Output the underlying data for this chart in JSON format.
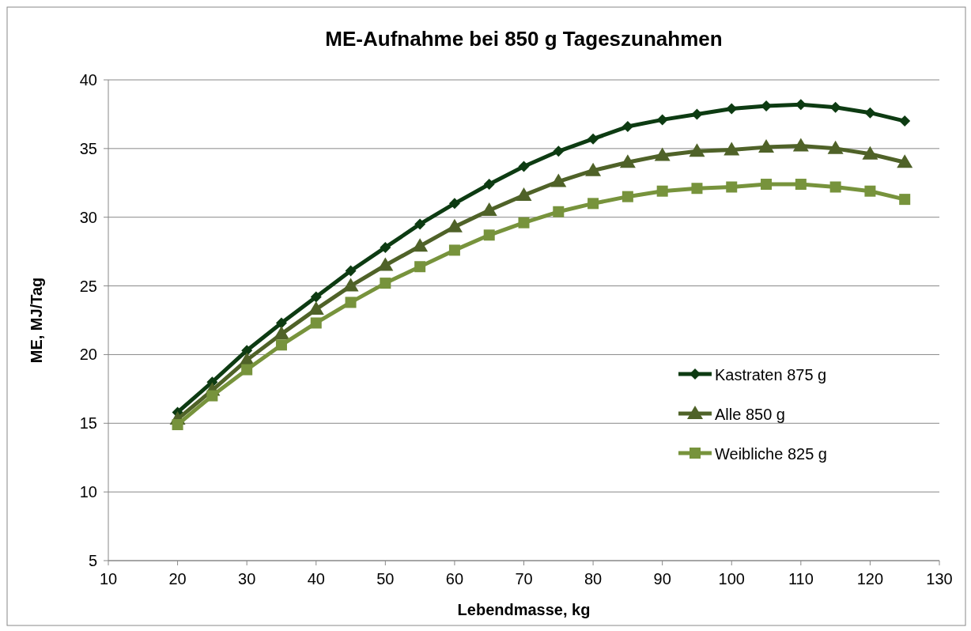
{
  "chart_data": {
    "type": "line",
    "title": "ME-Aufnahme bei 850 g Tageszunahmen",
    "xlabel": "Lebendmasse, kg",
    "ylabel": "ME, MJ/Tag",
    "x": [
      20,
      25,
      30,
      35,
      40,
      45,
      50,
      55,
      60,
      65,
      70,
      75,
      80,
      85,
      90,
      95,
      100,
      105,
      110,
      115,
      120,
      125
    ],
    "series": [
      {
        "name": "Kastraten  875 g",
        "color": "#0d3b12",
        "marker": "diamond",
        "values": [
          15.8,
          18.0,
          20.3,
          22.3,
          24.2,
          26.1,
          27.8,
          29.5,
          31.0,
          32.4,
          33.7,
          34.8,
          35.7,
          36.6,
          37.1,
          37.5,
          37.9,
          38.1,
          38.2,
          38.0,
          37.6,
          37.0
        ]
      },
      {
        "name": "Alle  850 g",
        "color": "#4f6228",
        "marker": "triangle",
        "values": [
          15.3,
          17.4,
          19.6,
          21.5,
          23.3,
          25.0,
          26.5,
          27.9,
          29.3,
          30.5,
          31.6,
          32.6,
          33.4,
          34.0,
          34.5,
          34.8,
          34.9,
          35.1,
          35.2,
          35.0,
          34.6,
          34.0
        ]
      },
      {
        "name": "Weibliche 825 g",
        "color": "#77933c",
        "marker": "square",
        "values": [
          14.9,
          17.0,
          18.9,
          20.7,
          22.3,
          23.8,
          25.2,
          26.4,
          27.6,
          28.7,
          29.6,
          30.4,
          31.0,
          31.5,
          31.9,
          32.1,
          32.2,
          32.4,
          32.4,
          32.2,
          31.9,
          31.3
        ]
      }
    ],
    "xlim": [
      10,
      130
    ],
    "xticks": [
      10,
      20,
      30,
      40,
      50,
      60,
      70,
      80,
      90,
      100,
      110,
      120,
      130
    ],
    "ylim": [
      5,
      40
    ],
    "yticks": [
      5,
      10,
      15,
      20,
      25,
      30,
      35,
      40
    ],
    "grid": "y",
    "legend": "right",
    "line_style": "solid"
  }
}
